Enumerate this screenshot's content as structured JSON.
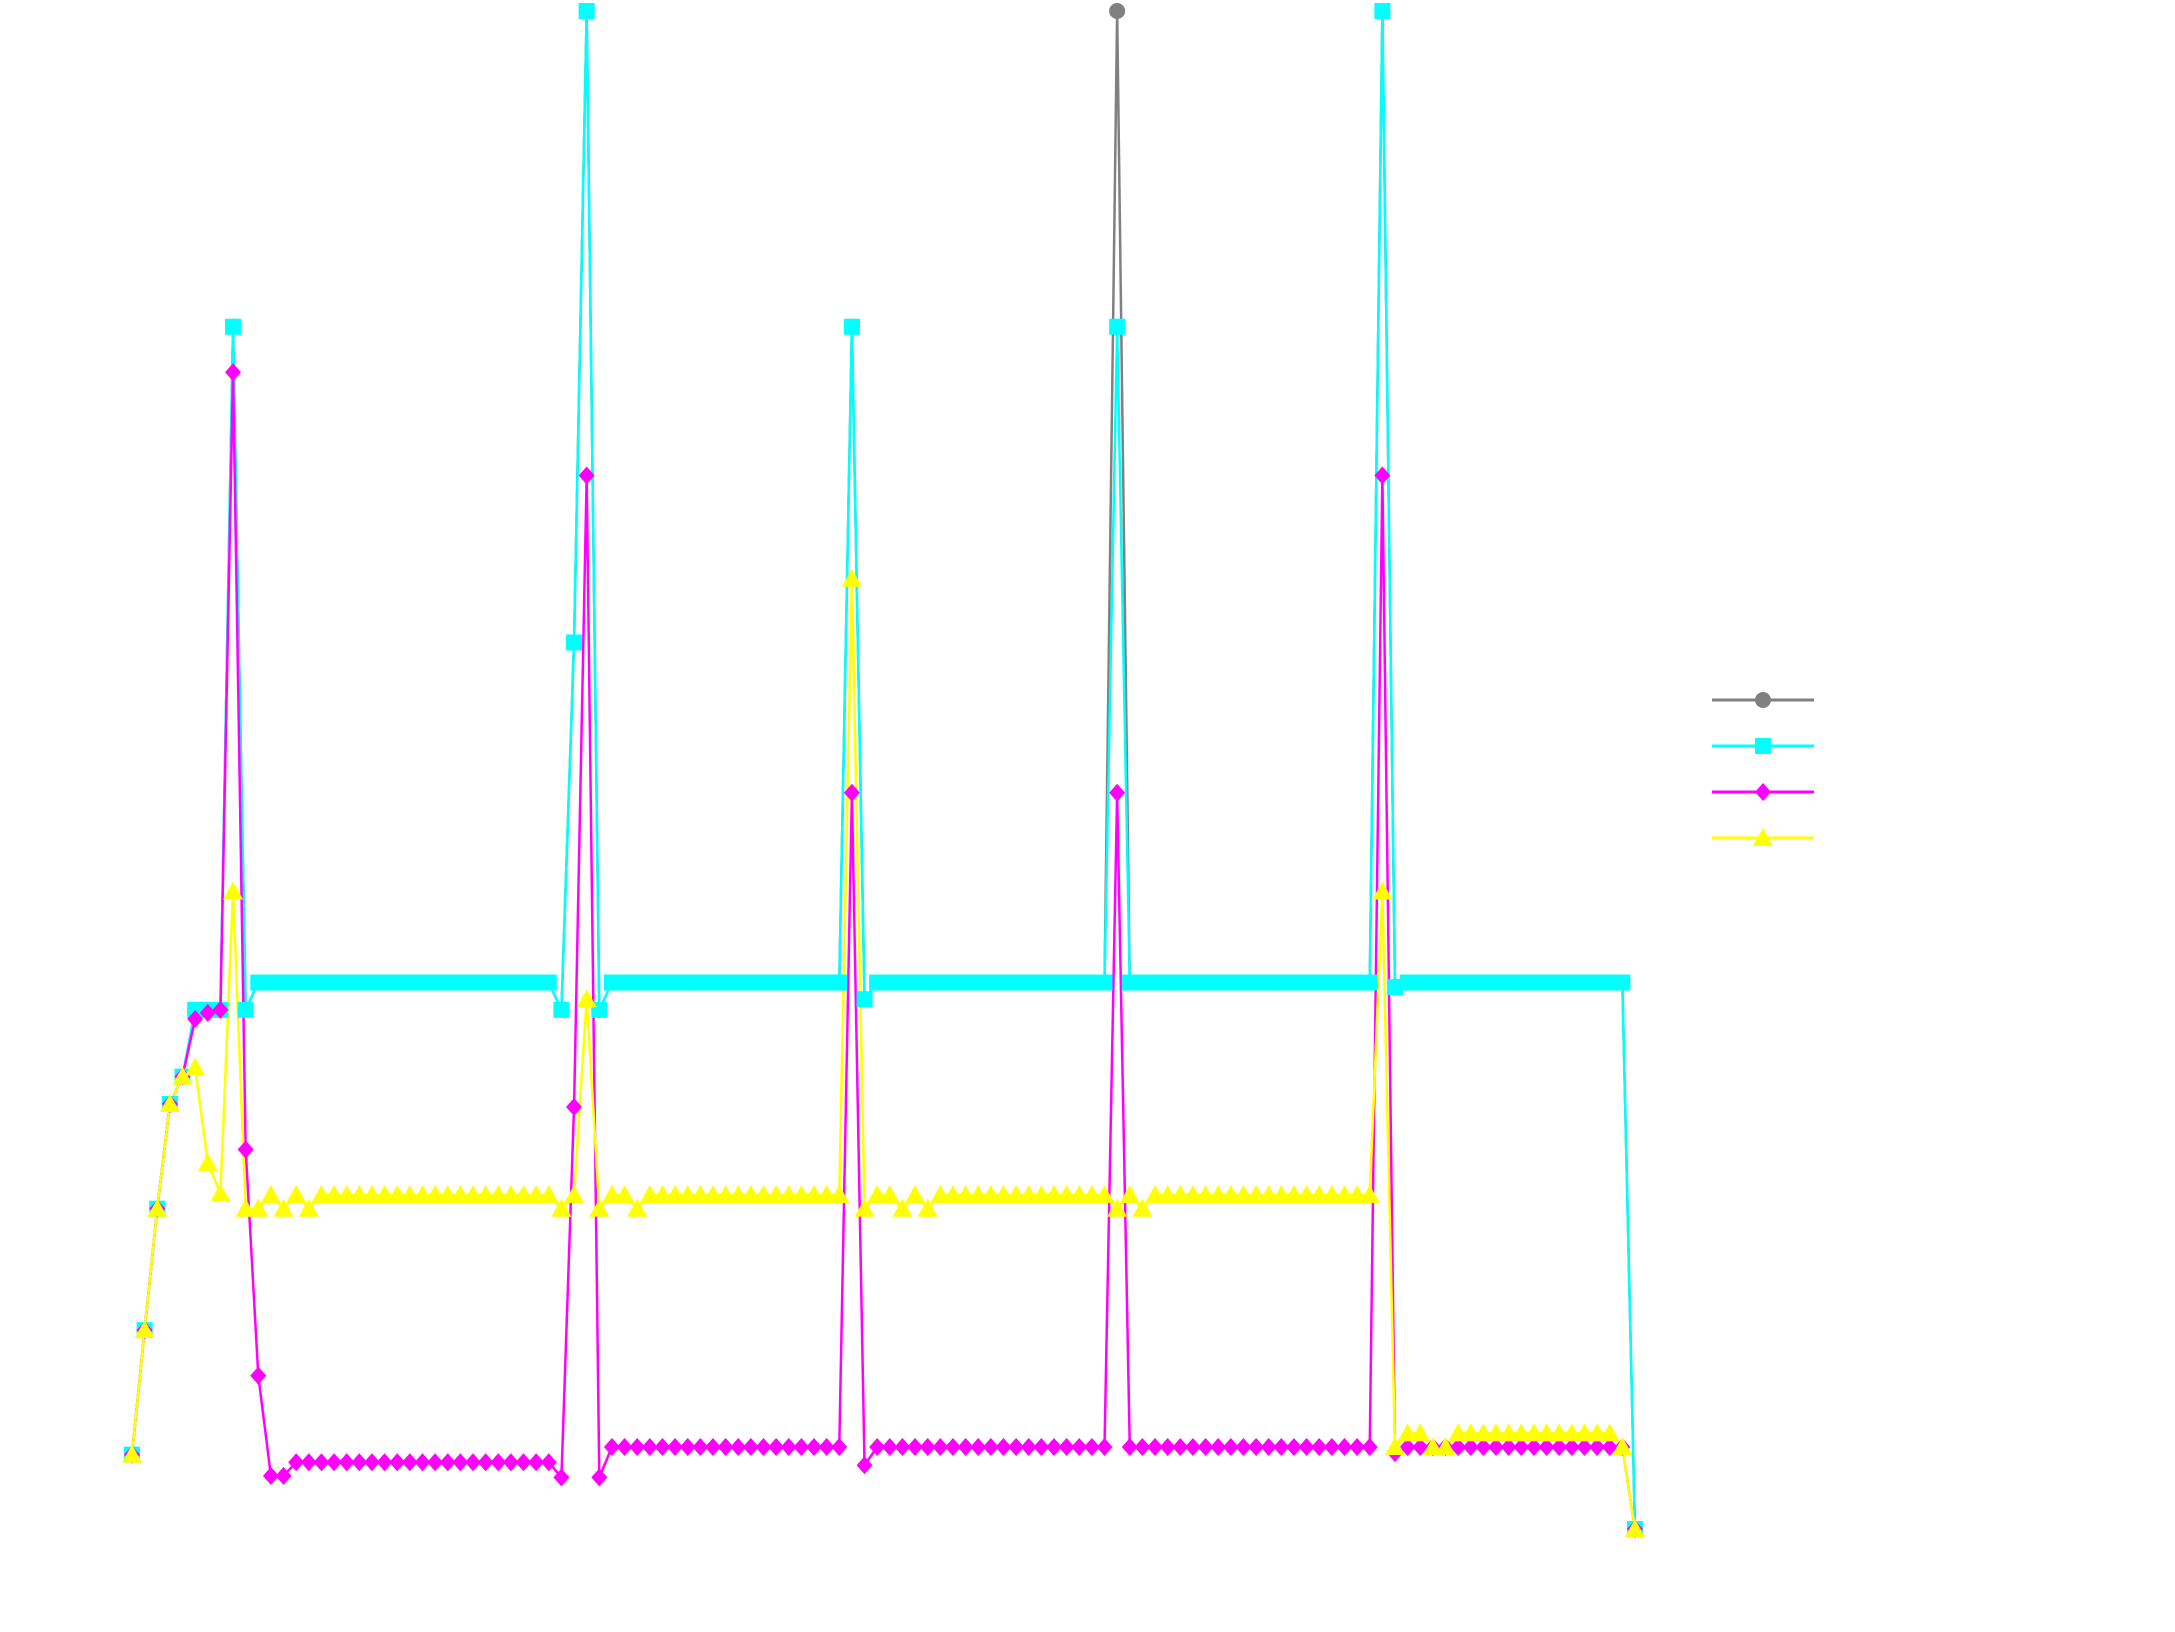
{
  "chart_data": {
    "type": "line",
    "ylim": [
      0,
      100
    ],
    "legend": "right",
    "series": [
      {
        "color": "#808080",
        "marker": "circle",
        "values": [
          4.9,
          13.1,
          21.1,
          28.0,
          29.8,
          34.2,
          34.2,
          34.2,
          79.2,
          34.2,
          36,
          36,
          36,
          36,
          36,
          36,
          36,
          36,
          36,
          36,
          36,
          36,
          36,
          36,
          36,
          36,
          36,
          36,
          36,
          36,
          36,
          36,
          36,
          36,
          34.2,
          58.4,
          100,
          34.2,
          36,
          36,
          36,
          36,
          36,
          36,
          36,
          36,
          36,
          36,
          36,
          36,
          36,
          36,
          36,
          36,
          36,
          36,
          36,
          79.2,
          34.9,
          36,
          36,
          36,
          36,
          36,
          36,
          36,
          36,
          36,
          36,
          36,
          36,
          36,
          36,
          36,
          36,
          36,
          36,
          36,
          100,
          36,
          36,
          36,
          36,
          36,
          36,
          36,
          36,
          36,
          36,
          36,
          36,
          36,
          36,
          36,
          36,
          36,
          36,
          36,
          36,
          100,
          35.7,
          36,
          36,
          36,
          36,
          36,
          36,
          36,
          36,
          36,
          36,
          36,
          36,
          36,
          36,
          36,
          36,
          36,
          36,
          0
        ]
      },
      {
        "color": "#00ffff",
        "marker": "square",
        "values": [
          4.9,
          13.1,
          21.1,
          28.0,
          29.8,
          34.2,
          34.2,
          34.2,
          79.2,
          34.2,
          36,
          36,
          36,
          36,
          36,
          36,
          36,
          36,
          36,
          36,
          36,
          36,
          36,
          36,
          36,
          36,
          36,
          36,
          36,
          36,
          36,
          36,
          36,
          36,
          34.2,
          58.4,
          100,
          34.2,
          36,
          36,
          36,
          36,
          36,
          36,
          36,
          36,
          36,
          36,
          36,
          36,
          36,
          36,
          36,
          36,
          36,
          36,
          36,
          79.2,
          34.9,
          36,
          36,
          36,
          36,
          36,
          36,
          36,
          36,
          36,
          36,
          36,
          36,
          36,
          36,
          36,
          36,
          36,
          36,
          36,
          79.2,
          36,
          36,
          36,
          36,
          36,
          36,
          36,
          36,
          36,
          36,
          36,
          36,
          36,
          36,
          36,
          36,
          36,
          36,
          36,
          36,
          100,
          35.7,
          36,
          36,
          36,
          36,
          36,
          36,
          36,
          36,
          36,
          36,
          36,
          36,
          36,
          36,
          36,
          36,
          36,
          36,
          0
        ]
      },
      {
        "color": "#ff00ff",
        "marker": "diamond",
        "values": [
          4.9,
          13.1,
          21.1,
          28.0,
          29.8,
          33.6,
          34.0,
          34.2,
          76.2,
          25.0,
          10.1,
          3.5,
          3.5,
          4.4,
          4.4,
          4.4,
          4.4,
          4.4,
          4.4,
          4.4,
          4.4,
          4.4,
          4.4,
          4.4,
          4.4,
          4.4,
          4.4,
          4.4,
          4.4,
          4.4,
          4.4,
          4.4,
          4.4,
          4.4,
          3.4,
          27.8,
          69.4,
          3.4,
          5.4,
          5.4,
          5.4,
          5.4,
          5.4,
          5.4,
          5.4,
          5.4,
          5.4,
          5.4,
          5.4,
          5.4,
          5.4,
          5.4,
          5.4,
          5.4,
          5.4,
          5.4,
          5.4,
          48.5,
          4.2,
          5.4,
          5.4,
          5.4,
          5.4,
          5.4,
          5.4,
          5.4,
          5.4,
          5.4,
          5.4,
          5.4,
          5.4,
          5.4,
          5.4,
          5.4,
          5.4,
          5.4,
          5.4,
          5.4,
          48.5,
          5.4,
          5.4,
          5.4,
          5.4,
          5.4,
          5.4,
          5.4,
          5.4,
          5.4,
          5.4,
          5.4,
          5.4,
          5.4,
          5.4,
          5.4,
          5.4,
          5.4,
          5.4,
          5.4,
          5.4,
          69.4,
          5.0,
          5.4,
          5.4,
          5.4,
          5.4,
          5.4,
          5.4,
          5.4,
          5.4,
          5.4,
          5.4,
          5.4,
          5.4,
          5.4,
          5.4,
          5.4,
          5.4,
          5.4,
          5.4,
          0
        ]
      },
      {
        "color": "#ffff00",
        "marker": "triangle",
        "values": [
          4.9,
          13.1,
          21.1,
          28.0,
          29.8,
          30.4,
          24.1,
          22.1,
          42.0,
          21.1,
          21.1,
          22,
          21.1,
          22,
          21.1,
          22,
          22,
          22,
          22,
          22,
          22,
          22,
          22,
          22,
          22,
          22,
          22,
          22,
          22,
          22,
          22,
          22,
          22,
          22,
          21.1,
          22,
          34.9,
          21.1,
          22,
          22,
          21.1,
          22,
          22,
          22,
          22,
          22,
          22,
          22,
          22,
          22,
          22,
          22,
          22,
          22,
          22,
          22,
          22,
          62.6,
          21.1,
          22,
          22,
          21.1,
          22,
          21.1,
          22,
          22,
          22,
          22,
          22,
          22,
          22,
          22,
          22,
          22,
          22,
          22,
          22,
          22,
          21.1,
          22,
          21.1,
          22,
          22,
          22,
          22,
          22,
          22,
          22,
          22,
          22,
          22,
          22,
          22,
          22,
          22,
          22,
          22,
          22,
          22,
          42.0,
          5.4,
          6.3,
          6.3,
          5.4,
          5.4,
          6.3,
          6.3,
          6.3,
          6.3,
          6.3,
          6.3,
          6.3,
          6.3,
          6.3,
          6.3,
          6.3,
          6.3,
          6.3,
          5.4,
          0
        ]
      }
    ]
  }
}
